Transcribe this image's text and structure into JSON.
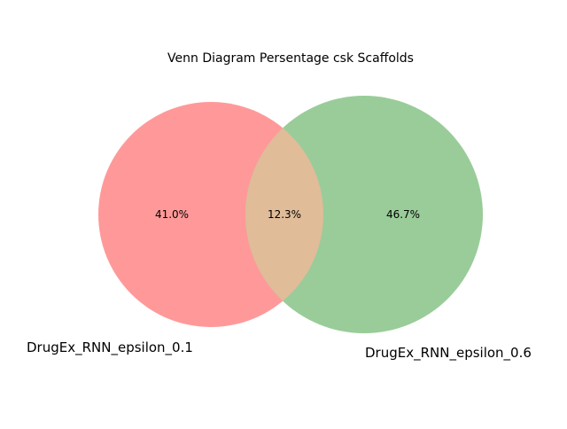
{
  "diagram": {
    "title": "Venn Diagram Persentage csk Scaffolds",
    "sets": [
      {
        "label": "DrugEx_RNN_epsilon_0.1",
        "only_value": "41.0%",
        "color": "#ff9999"
      },
      {
        "label": "DrugEx_RNN_epsilon_0.6",
        "only_value": "46.7%",
        "color": "#99cc99"
      }
    ],
    "intersection": {
      "value": "12.3%",
      "color": "#e0bc98"
    }
  }
}
